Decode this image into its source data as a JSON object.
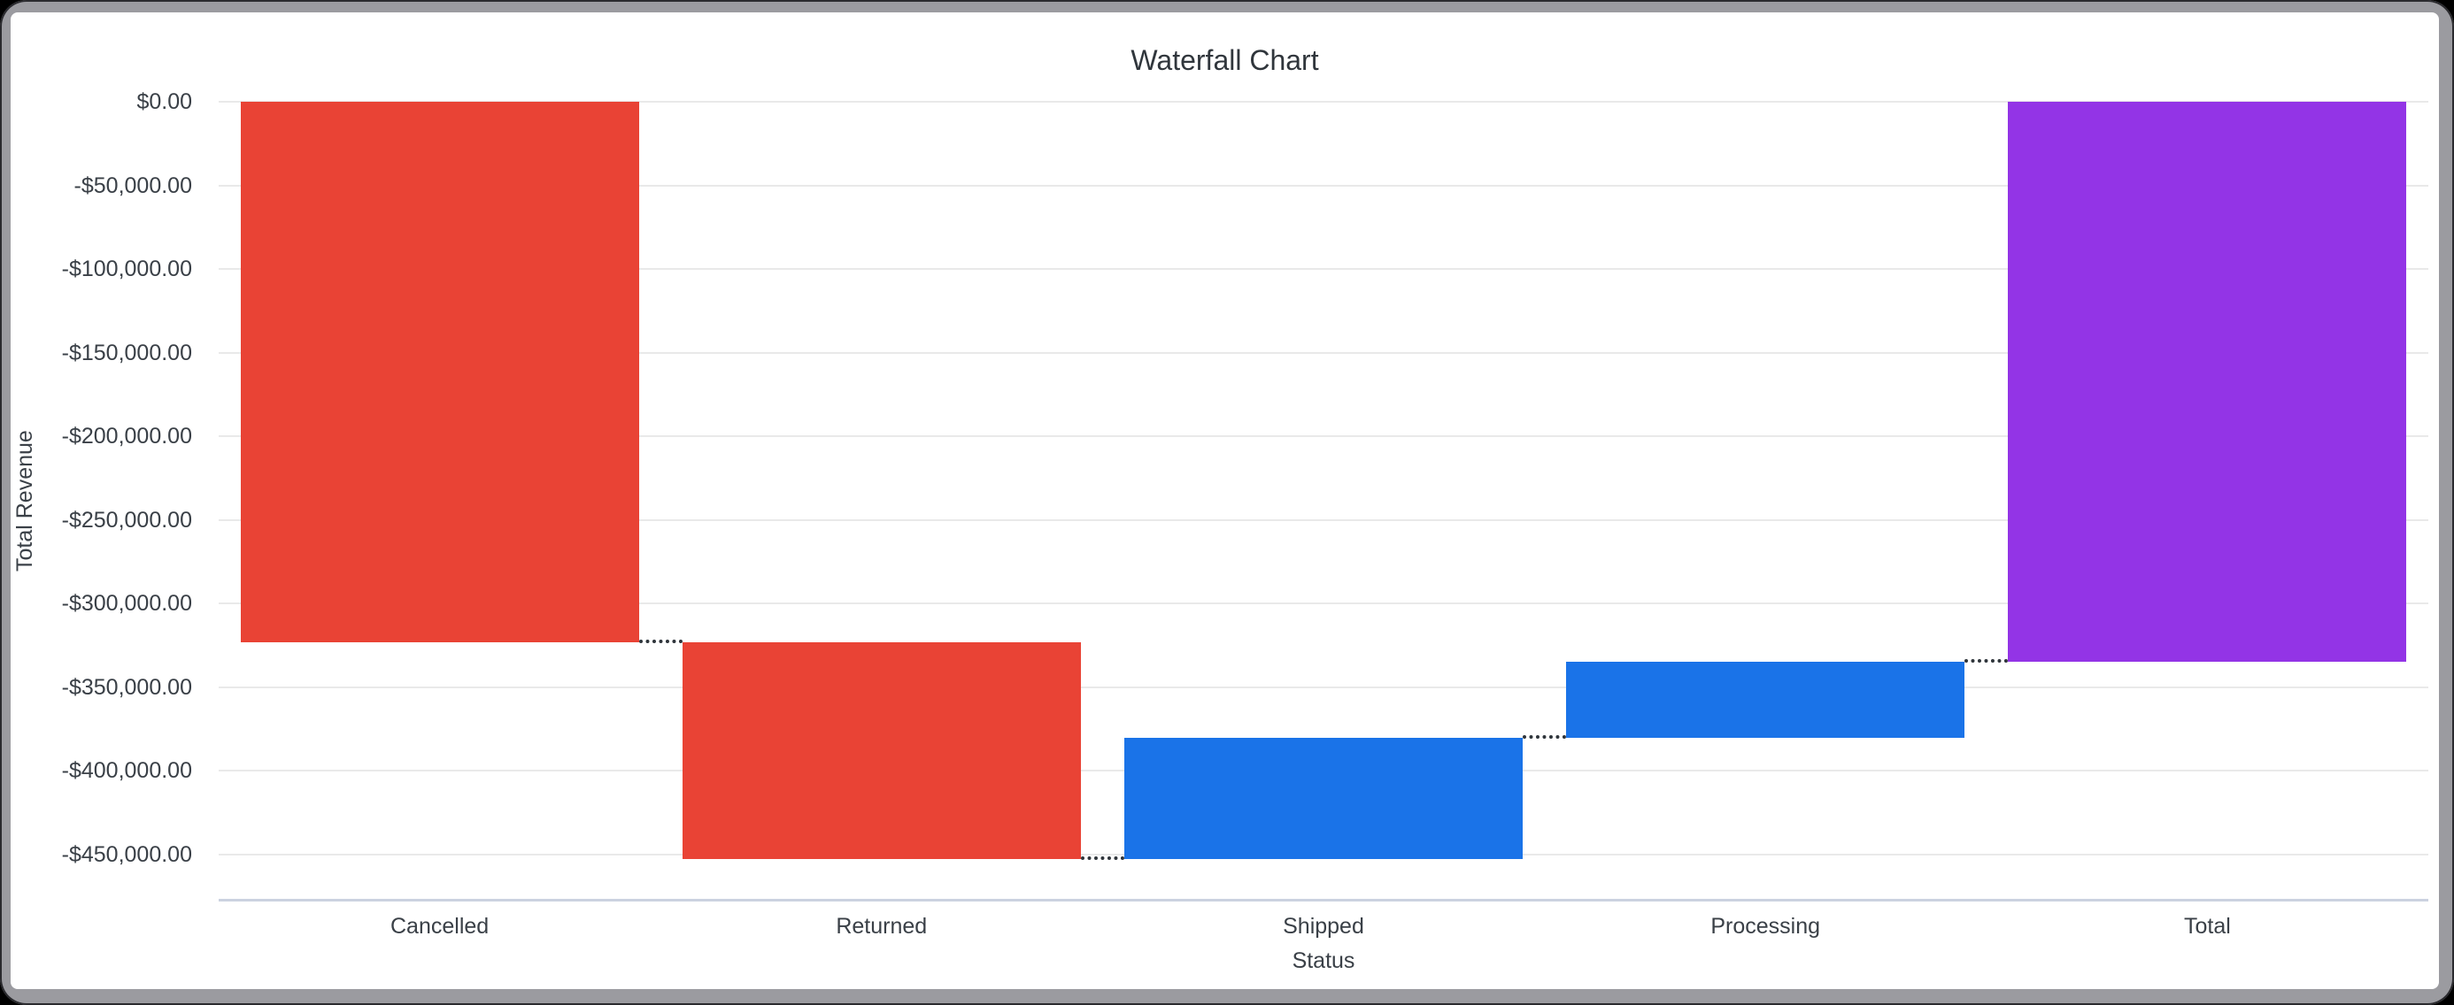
{
  "window": {
    "frame_color": "#9B9BA0",
    "background_color": "#FFFFFF"
  },
  "chart_data": {
    "type": "bar",
    "variant": "waterfall",
    "title": "Waterfall Chart",
    "xlabel": "Status",
    "ylabel": "Total Revenue",
    "categories": [
      "Cancelled",
      "Returned",
      "Shipped",
      "Processing",
      "Total"
    ],
    "segments": [
      {
        "label": "Cancelled",
        "delta": -323100,
        "start": 0,
        "end": -323100,
        "role": "decrease"
      },
      {
        "label": "Returned",
        "delta": -129500,
        "start": -323100,
        "end": -452600,
        "role": "decrease"
      },
      {
        "label": "Shipped",
        "delta": 72400,
        "start": -452600,
        "end": -380200,
        "role": "increase"
      },
      {
        "label": "Processing",
        "delta": 45500,
        "start": -380200,
        "end": -334700,
        "role": "increase"
      },
      {
        "label": "Total",
        "delta": -334700,
        "start": 0,
        "end": -334700,
        "role": "total"
      }
    ],
    "y_ticks": [
      {
        "value": 0,
        "label": "$0.00"
      },
      {
        "value": -50000,
        "label": "-$50,000.00"
      },
      {
        "value": -100000,
        "label": "-$100,000.00"
      },
      {
        "value": -150000,
        "label": "-$150,000.00"
      },
      {
        "value": -200000,
        "label": "-$200,000.00"
      },
      {
        "value": -250000,
        "label": "-$250,000.00"
      },
      {
        "value": -300000,
        "label": "-$300,000.00"
      },
      {
        "value": -350000,
        "label": "-$350,000.00"
      },
      {
        "value": -400000,
        "label": "-$400,000.00"
      },
      {
        "value": -450000,
        "label": "-$450,000.00"
      }
    ],
    "ylim": [
      -477000,
      0
    ],
    "grid": true,
    "legend": false,
    "colors": {
      "decrease": "#E94335",
      "increase": "#1A73E8",
      "total": "#9334E6",
      "gridline": "#E9E9E9",
      "axis_line": "#CBD2E0",
      "connector": "#2F353B",
      "title_text": "#30363C",
      "label_text": "#3A4047"
    }
  }
}
